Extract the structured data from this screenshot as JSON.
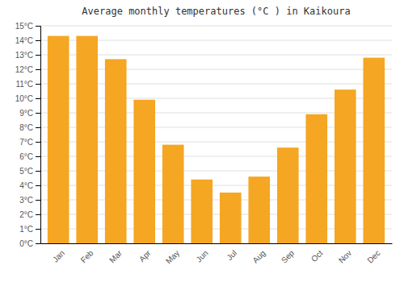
{
  "chart_data": {
    "type": "bar",
    "title": "Average monthly temperatures (°C ) in Kaikoura",
    "categories": [
      "Jan",
      "Feb",
      "Mar",
      "Apr",
      "May",
      "Jun",
      "Jul",
      "Aug",
      "Sep",
      "Oct",
      "Nov",
      "Dec"
    ],
    "values": [
      14.3,
      14.3,
      12.7,
      9.9,
      6.8,
      4.4,
      3.5,
      4.6,
      6.6,
      8.9,
      10.6,
      12.8
    ],
    "color": "#F5A623",
    "ylim": [
      0,
      15
    ],
    "yticks": [
      {
        "value": 0,
        "label": "0°C"
      },
      {
        "value": 1,
        "label": "1°C"
      },
      {
        "value": 2,
        "label": "2°C"
      },
      {
        "value": 3,
        "label": "3°C"
      },
      {
        "value": 4,
        "label": "4°C"
      },
      {
        "value": 5,
        "label": "5°C"
      },
      {
        "value": 6,
        "label": "6°C"
      },
      {
        "value": 7,
        "label": "7°C"
      },
      {
        "value": 8,
        "label": "8°C"
      },
      {
        "value": 9,
        "label": "9°C"
      },
      {
        "value": 10,
        "label": "10°C"
      },
      {
        "value": 11,
        "label": "11°C"
      },
      {
        "value": 12,
        "label": "12°C"
      },
      {
        "value": 13,
        "label": "13°C"
      },
      {
        "value": 14,
        "label": "14°C"
      },
      {
        "value": 15,
        "label": "15°C"
      }
    ],
    "grid": true
  }
}
